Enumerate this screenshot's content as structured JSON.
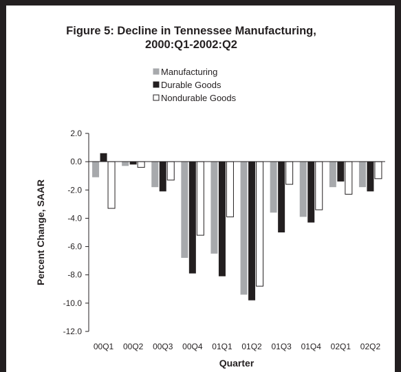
{
  "chart_data": {
    "type": "bar",
    "title": "Figure 5: Decline in Tennessee Manufacturing,",
    "subtitle": "2000:Q1-2002:Q2",
    "xlabel": "Quarter",
    "ylabel": "Percent Change, SAAR",
    "ylim": [
      -12,
      2
    ],
    "ytick_values": [
      2,
      0,
      -2,
      -4,
      -6,
      -8,
      -10,
      -12
    ],
    "ytick_labels": [
      "2.0",
      "0.0",
      "-2.0",
      "-4.0",
      "-6.0",
      "-8.0",
      "-10.0",
      "-12.0"
    ],
    "grid": false,
    "legend_position": "top-center",
    "categories": [
      "00Q1",
      "00Q2",
      "00Q3",
      "00Q4",
      "01Q1",
      "01Q2",
      "01Q3",
      "01Q4",
      "02Q1",
      "02Q2"
    ],
    "series": [
      {
        "name": "Manufacturing",
        "color": "#a7a9ac",
        "values": [
          -1.1,
          -0.3,
          -1.8,
          -6.8,
          -6.5,
          -9.4,
          -3.6,
          -3.9,
          -1.8,
          -1.8
        ]
      },
      {
        "name": "Durable Goods",
        "color": "#231f20",
        "values": [
          0.6,
          -0.2,
          -2.1,
          -7.9,
          -8.1,
          -9.8,
          -5.0,
          -4.3,
          -1.4,
          -2.1
        ]
      },
      {
        "name": "Nondurable Goods",
        "color": "#ffffff",
        "values": [
          -3.3,
          -0.4,
          -1.3,
          -5.2,
          -3.9,
          -8.8,
          -1.6,
          -3.4,
          -2.3,
          -1.2
        ]
      }
    ]
  }
}
